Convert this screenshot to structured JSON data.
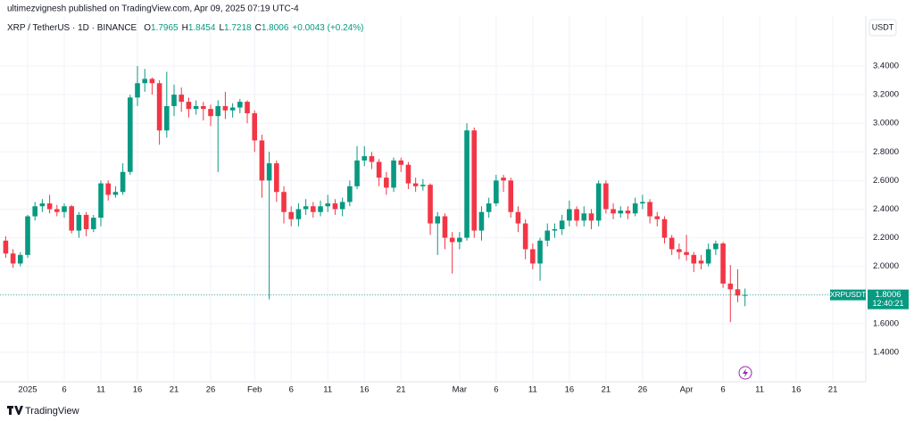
{
  "chart_data": {
    "type": "candlestick",
    "published": "ultimezvignesh published on TradingView.com, Apr 09, 2025 07:19 UTC-4",
    "title": "XRP / TetherUS · 1D · BINANCE",
    "ohlc_prefixes": [
      "O",
      "H",
      "L",
      "C"
    ],
    "change": "+0.0043 (+0.24%)",
    "currency": "USDT",
    "symbol_tag": "XRPUSDT",
    "countdown": "12:40:21",
    "brand": "TradingView",
    "up_color": "#089981",
    "down_color": "#f23645",
    "grid": true,
    "x": [
      -3,
      -2,
      -1,
      0,
      1,
      2,
      3,
      4,
      5,
      6,
      7,
      8,
      9,
      10,
      11,
      12,
      13,
      14,
      15,
      16,
      17,
      18,
      19,
      20,
      21,
      22,
      23,
      24,
      25,
      26,
      27,
      28,
      29,
      30,
      31,
      32,
      33,
      34,
      35,
      36,
      37,
      38,
      39,
      40,
      41,
      42,
      43,
      44,
      45,
      46,
      47,
      48,
      49,
      50,
      51,
      52,
      53,
      54,
      55,
      56,
      57,
      58,
      59,
      60,
      61,
      62,
      63,
      64,
      65,
      66,
      67,
      68,
      69,
      70,
      71,
      72,
      73,
      74,
      75,
      76,
      77,
      78,
      79,
      80,
      81,
      82,
      83,
      84,
      85,
      86,
      87,
      88,
      89,
      90,
      91,
      92,
      93,
      94,
      95,
      96,
      97,
      98
    ],
    "open": [
      2.18,
      2.09,
      2.02,
      2.08,
      2.35,
      2.42,
      2.44,
      2.4,
      2.38,
      2.42,
      2.25,
      2.36,
      2.26,
      2.34,
      2.58,
      2.5,
      2.52,
      2.66,
      3.18,
      3.28,
      3.31,
      3.28,
      2.95,
      3.12,
      3.2,
      3.15,
      3.1,
      3.12,
      3.1,
      3.05,
      3.12,
      3.09,
      3.11,
      3.15,
      3.07,
      2.88,
      2.6,
      2.72,
      2.52,
      2.38,
      2.33,
      2.4,
      2.42,
      2.38,
      2.42,
      2.44,
      2.4,
      2.45,
      2.56,
      2.74,
      2.77,
      2.73,
      2.62,
      2.55,
      2.74,
      2.71,
      2.58,
      2.56,
      2.57,
      2.3,
      2.35,
      2.2,
      2.17,
      2.2,
      2.95,
      2.25,
      2.38,
      2.44,
      2.62,
      2.6,
      2.38,
      2.3,
      2.12,
      2.02,
      2.18,
      2.25,
      2.26,
      2.32,
      2.4,
      2.32,
      2.37,
      2.32,
      2.58,
      2.4,
      2.37,
      2.39,
      2.37,
      2.44,
      2.45,
      2.35,
      2.33,
      2.2,
      2.12,
      2.1,
      2.08,
      2.04,
      2.02,
      2.12,
      2.16,
      1.88,
      1.84,
      1.7965
    ],
    "high": [
      2.21,
      2.12,
      2.1,
      2.36,
      2.45,
      2.47,
      2.5,
      2.43,
      2.44,
      2.43,
      2.38,
      2.38,
      2.36,
      2.6,
      2.6,
      2.56,
      2.72,
      3.2,
      3.4,
      3.38,
      3.32,
      3.3,
      3.36,
      3.27,
      3.25,
      3.18,
      3.16,
      3.15,
      3.13,
      3.16,
      3.22,
      3.14,
      3.17,
      3.16,
      3.09,
      2.92,
      2.8,
      2.74,
      2.56,
      2.42,
      2.44,
      2.47,
      2.45,
      2.46,
      2.5,
      2.47,
      2.48,
      2.6,
      2.84,
      2.84,
      2.8,
      2.75,
      2.66,
      2.76,
      2.76,
      2.73,
      2.62,
      2.61,
      2.58,
      2.38,
      2.37,
      2.24,
      2.24,
      3.0,
      2.97,
      2.42,
      2.48,
      2.64,
      2.64,
      2.62,
      2.42,
      2.33,
      2.16,
      2.2,
      2.3,
      2.3,
      2.36,
      2.46,
      2.42,
      2.42,
      2.4,
      2.6,
      2.6,
      2.44,
      2.42,
      2.42,
      2.48,
      2.5,
      2.47,
      2.38,
      2.35,
      2.22,
      2.16,
      2.22,
      2.1,
      2.08,
      2.16,
      2.18,
      2.17,
      2.01,
      1.98,
      1.8454
    ],
    "low": [
      2.06,
      1.99,
      2.0,
      2.06,
      2.32,
      2.38,
      2.37,
      2.35,
      2.34,
      2.23,
      2.2,
      2.21,
      2.24,
      2.28,
      2.46,
      2.48,
      2.5,
      2.64,
      3.12,
      3.22,
      3.2,
      2.85,
      2.9,
      3.05,
      3.08,
      3.04,
      3.06,
      3.02,
      2.98,
      2.66,
      3.03,
      3.04,
      3.07,
      3.0,
      2.8,
      2.48,
      1.77,
      2.45,
      2.3,
      2.28,
      2.28,
      2.36,
      2.34,
      2.35,
      2.38,
      2.36,
      2.35,
      2.42,
      2.54,
      2.7,
      2.68,
      2.56,
      2.5,
      2.52,
      2.66,
      2.54,
      2.52,
      2.53,
      2.22,
      2.08,
      2.12,
      1.95,
      2.12,
      2.18,
      2.2,
      2.18,
      2.34,
      2.42,
      2.52,
      2.34,
      2.24,
      2.05,
      1.98,
      1.9,
      2.14,
      2.2,
      2.22,
      2.28,
      2.28,
      2.28,
      2.26,
      2.28,
      2.37,
      2.33,
      2.34,
      2.33,
      2.35,
      2.4,
      2.3,
      2.28,
      2.16,
      2.08,
      2.05,
      2.04,
      1.96,
      1.98,
      2.0,
      2.08,
      1.85,
      1.61,
      1.75,
      1.7218
    ],
    "close": [
      2.09,
      2.02,
      2.08,
      2.35,
      2.42,
      2.44,
      2.4,
      2.38,
      2.42,
      2.25,
      2.36,
      2.26,
      2.34,
      2.58,
      2.5,
      2.52,
      2.66,
      3.18,
      3.28,
      3.31,
      3.28,
      2.95,
      3.12,
      3.2,
      3.15,
      3.1,
      3.12,
      3.1,
      3.05,
      3.12,
      3.09,
      3.11,
      3.15,
      3.07,
      2.88,
      2.6,
      2.72,
      2.52,
      2.38,
      2.33,
      2.4,
      2.42,
      2.38,
      2.42,
      2.44,
      2.4,
      2.45,
      2.56,
      2.74,
      2.77,
      2.73,
      2.62,
      2.55,
      2.74,
      2.71,
      2.58,
      2.56,
      2.57,
      2.3,
      2.35,
      2.2,
      2.17,
      2.2,
      2.95,
      2.25,
      2.38,
      2.44,
      2.6,
      2.6,
      2.38,
      2.3,
      2.12,
      2.02,
      2.18,
      2.25,
      2.26,
      2.32,
      2.4,
      2.32,
      2.37,
      2.32,
      2.58,
      2.4,
      2.37,
      2.39,
      2.37,
      2.44,
      2.45,
      2.35,
      2.33,
      2.2,
      2.12,
      2.1,
      2.08,
      2.02,
      2.02,
      2.12,
      2.16,
      1.88,
      1.84,
      1.7965,
      1.8006
    ],
    "xlim": [
      -3.78,
      114.5
    ],
    "ylim": [
      1.194,
      3.749
    ],
    "xticks": [
      {
        "value": 0,
        "label": "2025"
      },
      {
        "value": 5,
        "label": "6"
      },
      {
        "value": 10,
        "label": "11"
      },
      {
        "value": 15,
        "label": "16"
      },
      {
        "value": 20,
        "label": "21"
      },
      {
        "value": 25,
        "label": "26"
      },
      {
        "value": 31,
        "label": "Feb"
      },
      {
        "value": 36,
        "label": "6"
      },
      {
        "value": 41,
        "label": "11"
      },
      {
        "value": 46,
        "label": "16"
      },
      {
        "value": 51,
        "label": "21"
      },
      {
        "value": 59,
        "label": "Mar"
      },
      {
        "value": 64,
        "label": "6"
      },
      {
        "value": 69,
        "label": "11"
      },
      {
        "value": 74,
        "label": "16"
      },
      {
        "value": 79,
        "label": "21"
      },
      {
        "value": 84,
        "label": "26"
      },
      {
        "value": 90,
        "label": "Apr"
      },
      {
        "value": 95,
        "label": "6"
      },
      {
        "value": 100,
        "label": "11"
      },
      {
        "value": 105,
        "label": "16"
      },
      {
        "value": 110,
        "label": "21"
      }
    ],
    "yticks": [
      {
        "value": 1.4,
        "label": "1.4000"
      },
      {
        "value": 1.6,
        "label": "1.6000"
      },
      {
        "value": 1.8,
        "label": "1.8000"
      },
      {
        "value": 2.0,
        "label": "2.0000"
      },
      {
        "value": 2.2,
        "label": "2.2000"
      },
      {
        "value": 2.4,
        "label": "2.4000"
      },
      {
        "value": 2.6,
        "label": "2.6000"
      },
      {
        "value": 2.8,
        "label": "2.8000"
      },
      {
        "value": 3.0,
        "label": "3.0000"
      },
      {
        "value": 3.2,
        "label": "3.2000"
      },
      {
        "value": 3.4,
        "label": "3.4000"
      }
    ]
  }
}
